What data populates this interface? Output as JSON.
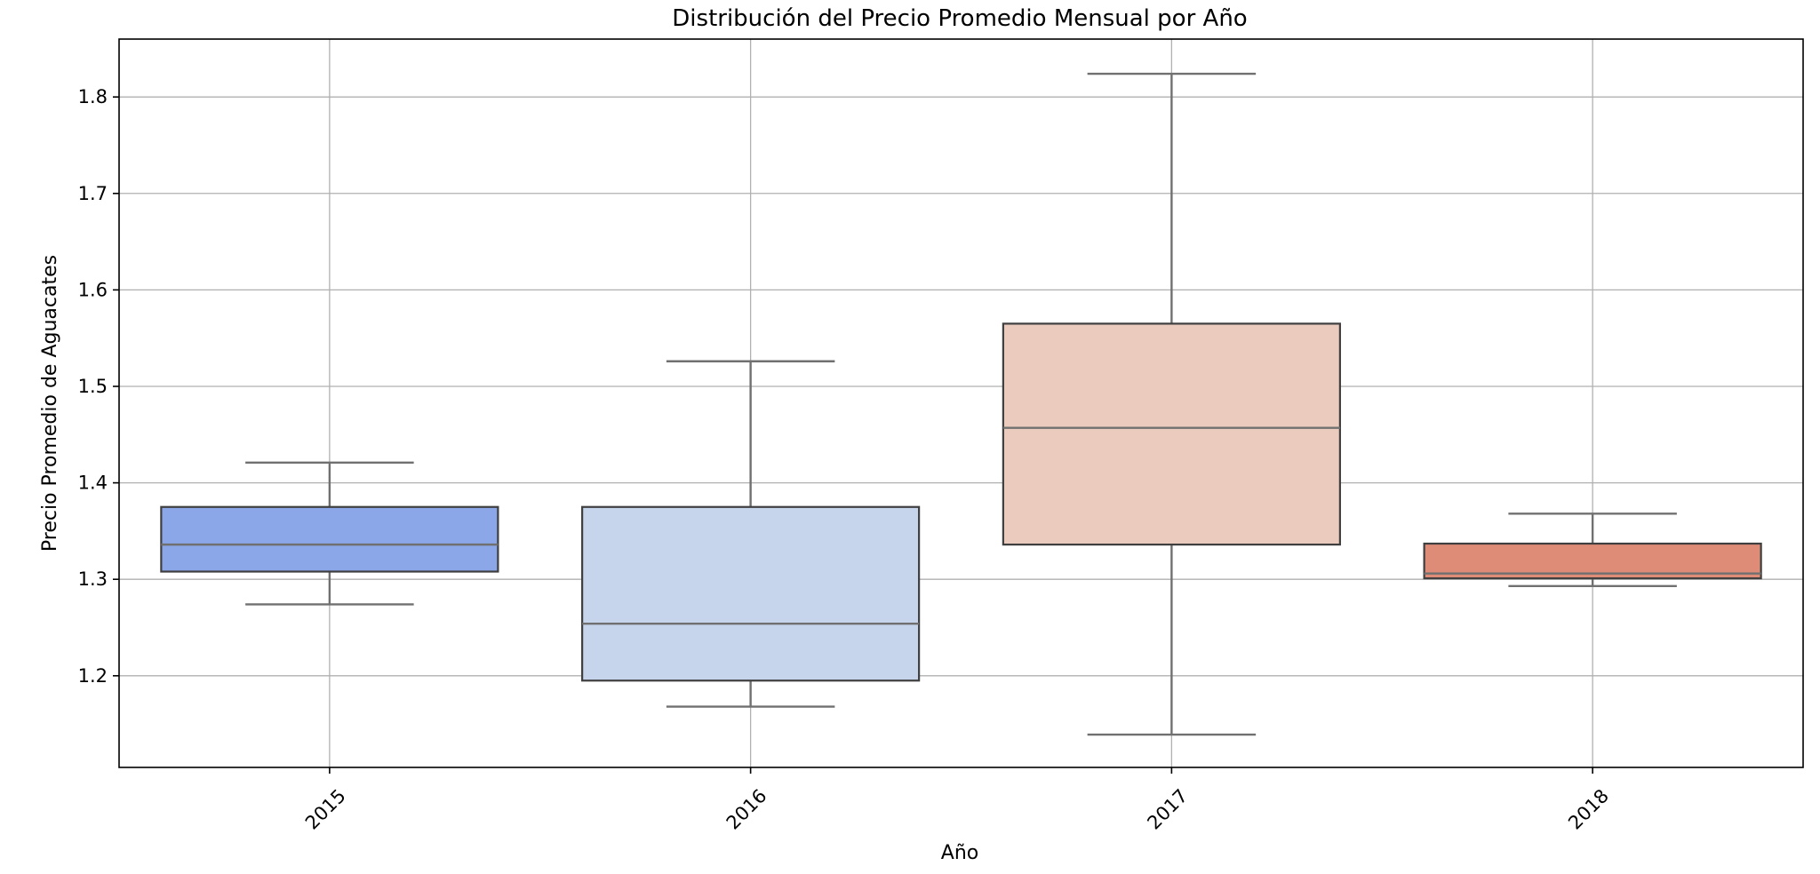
{
  "chart_data": {
    "type": "box",
    "title": "Distribución del Precio Promedio Mensual por Año",
    "xlabel": "Año",
    "ylabel": "Precio Promedio de Aguacates",
    "categories": [
      "2015",
      "2016",
      "2017",
      "2018"
    ],
    "yticks": [
      1.2,
      1.3,
      1.4,
      1.5,
      1.6,
      1.7,
      1.8
    ],
    "ylim": [
      1.105,
      1.86
    ],
    "grid": true,
    "boxes": [
      {
        "category": "2015",
        "whislo": 1.274,
        "q1": 1.308,
        "median": 1.336,
        "q3": 1.375,
        "whishi": 1.421,
        "color": "#8ba7e8"
      },
      {
        "category": "2016",
        "whislo": 1.168,
        "q1": 1.195,
        "median": 1.254,
        "q3": 1.375,
        "whishi": 1.526,
        "color": "#c7d5ec"
      },
      {
        "category": "2017",
        "whislo": 1.139,
        "q1": 1.336,
        "median": 1.457,
        "q3": 1.565,
        "whishi": 1.824,
        "color": "#eacbbd"
      },
      {
        "category": "2018",
        "whislo": 1.293,
        "q1": 1.301,
        "median": 1.306,
        "q3": 1.337,
        "whishi": 1.368,
        "color": "#de8b77"
      }
    ]
  }
}
